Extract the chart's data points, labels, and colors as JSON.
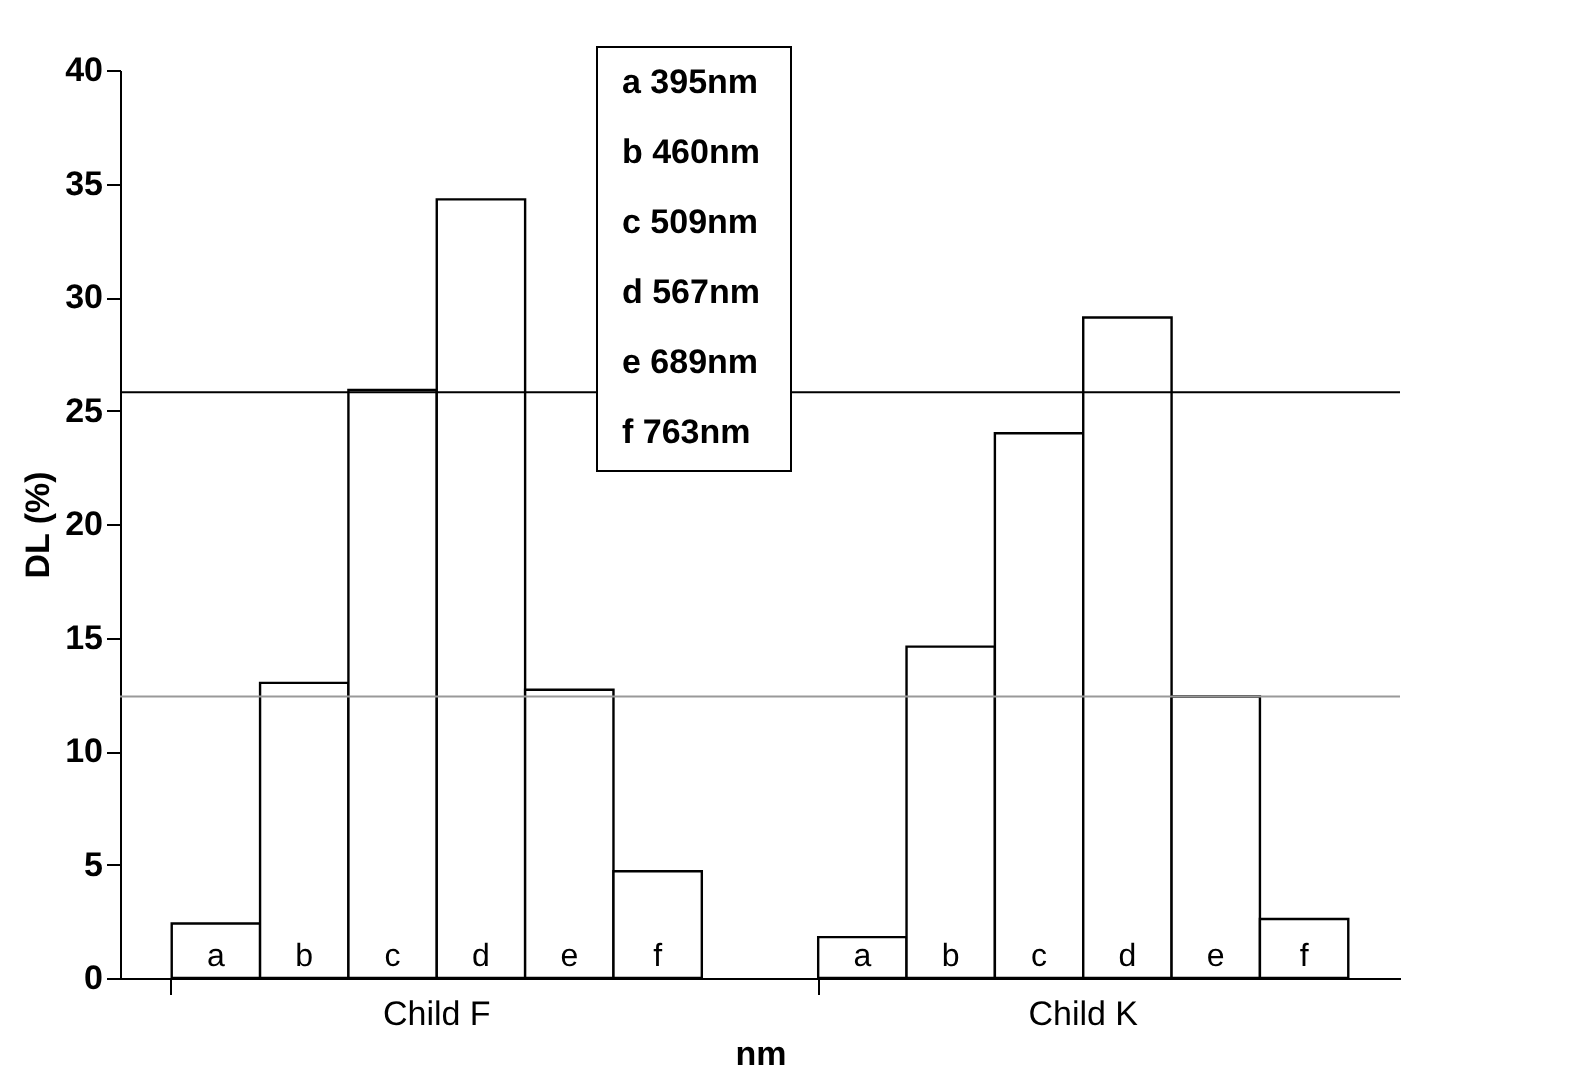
{
  "chart_data": {
    "type": "bar",
    "xlabel": "nm",
    "ylabel": "DL (%)",
    "categories": [
      "Child F",
      "Child K"
    ],
    "series": [
      {
        "name": "a",
        "color": "#ffffff",
        "values": [
          2.4,
          1.8
        ]
      },
      {
        "name": "b",
        "color": "#ffffff",
        "values": [
          13.0,
          14.6
        ]
      },
      {
        "name": "c",
        "color": "#ffffff",
        "values": [
          25.9,
          24.0
        ]
      },
      {
        "name": "d",
        "color": "#ffffff",
        "values": [
          34.3,
          29.1
        ]
      },
      {
        "name": "e",
        "color": "#ffffff",
        "values": [
          12.7,
          12.4
        ]
      },
      {
        "name": "f",
        "color": "#ffffff",
        "values": [
          4.7,
          2.6
        ]
      }
    ],
    "annotations": [
      "a  395nm",
      "b  460nm",
      "c  509nm",
      "d  567nm",
      "e  689nm",
      "f  763nm"
    ],
    "ylim": [
      0,
      40
    ],
    "yticks": [
      0,
      5,
      10,
      15,
      20,
      25,
      30,
      35,
      40
    ],
    "ref_lines": [
      {
        "axis": "y",
        "value": 25.8,
        "color": "#000000"
      },
      {
        "axis": "y",
        "value": 12.4,
        "color": "#999999"
      }
    ],
    "grid": false
  }
}
